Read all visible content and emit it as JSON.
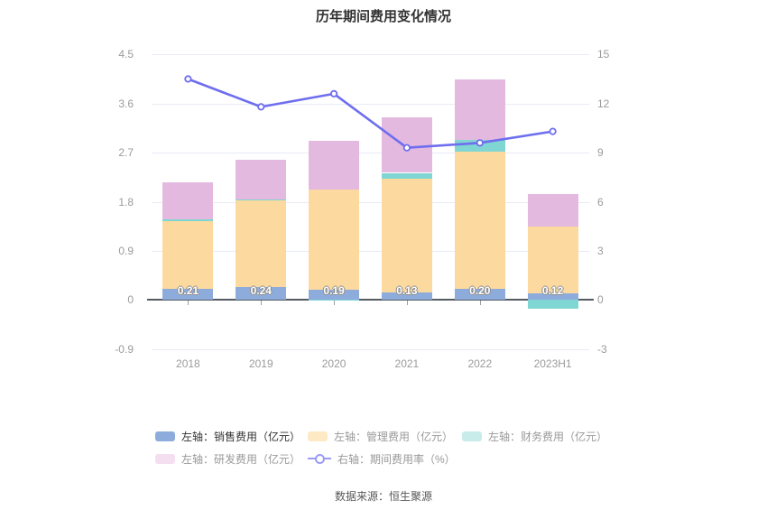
{
  "footer": {
    "source": "数据来源：恒生聚源"
  },
  "chart_data": {
    "type": "bar",
    "subtype": "stacked-bar-with-line",
    "title": "历年期间费用变化情况",
    "grid": true,
    "legend_position": "bottom",
    "categories": [
      "2018",
      "2019",
      "2020",
      "2021",
      "2022",
      "2023H1"
    ],
    "series": [
      {
        "name": "左轴：销售费用（亿元）",
        "key": "sales-expense",
        "color": "#8eacdb",
        "values": [
          0.21,
          0.24,
          0.19,
          0.13,
          0.2,
          0.12
        ],
        "labels": [
          "0.21",
          "0.24",
          "0.19",
          "0.13",
          "0.20",
          "0.12"
        ]
      },
      {
        "name": "左轴：管理费用（亿元）",
        "key": "admin-expense",
        "color": "#fcd99e",
        "values": [
          1.24,
          1.59,
          1.83,
          2.1,
          2.52,
          1.23
        ]
      },
      {
        "name": "左轴：财务费用（亿元）",
        "key": "finance-expense",
        "color": "#7fd6d2",
        "values": [
          0.03,
          0.01,
          -0.02,
          0.1,
          0.22,
          -0.16
        ]
      },
      {
        "name": "左轴：研发费用（亿元）",
        "key": "rd-expense",
        "color": "#e4b9df",
        "values": [
          0.67,
          0.73,
          0.89,
          1.01,
          1.1,
          0.59
        ]
      }
    ],
    "line_series": {
      "name": "右轴：期间费用率（%）",
      "key": "expense-ratio",
      "color": "#6e6eef",
      "values": [
        13.5,
        11.8,
        12.6,
        9.3,
        9.6,
        10.3
      ]
    },
    "left_axis": {
      "ticks": [
        "4.5",
        "3.6",
        "2.7",
        "1.8",
        "0.9",
        "0",
        "-0.9"
      ],
      "tick_values": [
        4.5,
        3.6,
        2.7,
        1.8,
        0.9,
        0,
        -0.9
      ],
      "range": [
        -0.9,
        4.5
      ]
    },
    "right_axis": {
      "ticks": [
        "15",
        "12",
        "9",
        "6",
        "3",
        "0",
        "-3"
      ],
      "tick_values": [
        15,
        12,
        9,
        6,
        3,
        0,
        -3
      ],
      "range": [
        -3,
        15
      ]
    },
    "legend": {
      "items": [
        {
          "label": "左轴：销售费用（亿元）",
          "kind": "rect",
          "swatch_color": "#8eacdb",
          "text_color": "#333333"
        },
        {
          "label": "左轴：管理费用（亿元）",
          "kind": "rect",
          "swatch_color": "#fde9c4",
          "text_color": "#999999"
        },
        {
          "label": "左轴：财务费用（亿元）",
          "kind": "rect",
          "swatch_color": "#c8ecea",
          "text_color": "#999999"
        },
        {
          "label": "左轴：研发费用（亿元）",
          "kind": "rect",
          "swatch_color": "#f4dff1",
          "text_color": "#999999"
        },
        {
          "label": "右轴：期间费用率（%）",
          "kind": "line",
          "swatch_color": "#9b9bf3",
          "text_color": "#999999"
        }
      ]
    }
  }
}
